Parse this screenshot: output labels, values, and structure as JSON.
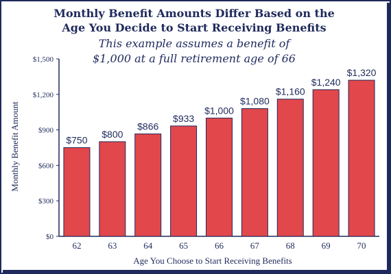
{
  "chart_data": {
    "type": "bar",
    "title": "Monthly Benefit Amounts Differ Based on the",
    "title_line2": "Age You Decide to Start Receiving Benefits",
    "subtitle": "This example assumes a benefit of",
    "subtitle_line2": "$1,000 at a full retirement age of 66",
    "xlabel": "Age You Choose to Start Receiving Benefits",
    "ylabel": "Monthly Benefit Amount",
    "categories": [
      "62",
      "63",
      "64",
      "65",
      "66",
      "67",
      "68",
      "69",
      "70"
    ],
    "values": [
      750,
      800,
      866,
      933,
      1000,
      1080,
      1160,
      1240,
      1320
    ],
    "value_labels": [
      "$750",
      "$800",
      "$866",
      "$933",
      "$1,000",
      "$1,080",
      "$1,160",
      "$1,240",
      "$1,320"
    ],
    "ylim": [
      0,
      1500
    ],
    "yticks": [
      0,
      300,
      600,
      900,
      1200,
      1500
    ],
    "ytick_labels": [
      "$0",
      "$300",
      "$600",
      "$900",
      "$1,200",
      "$1,500"
    ],
    "grid": false,
    "legend": "none",
    "colors": {
      "bar_fill": "#e2474b",
      "bar_stroke": "#1f2a5c",
      "text": "#1f2a5c",
      "background": "#ffffff"
    }
  }
}
